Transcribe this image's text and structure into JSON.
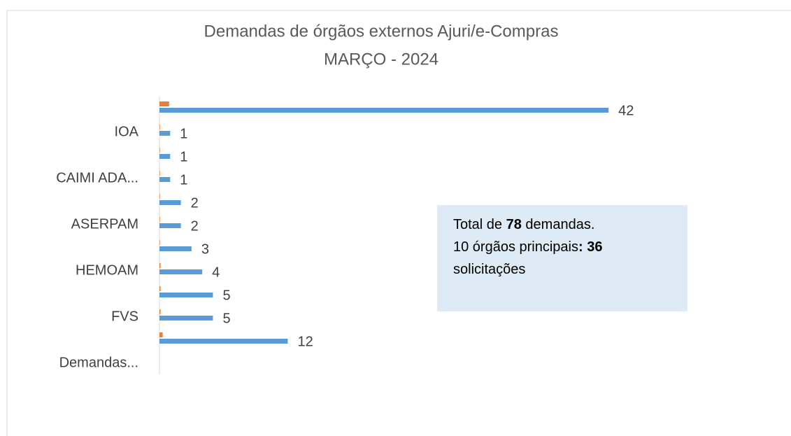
{
  "chart_data": {
    "type": "bar",
    "orientation": "horizontal",
    "title": "Demandas de órgãos externos Ajuri/e-Compras",
    "subtitle": "MARÇO - 2024",
    "categories": [
      null,
      "IOA",
      null,
      "CAIMI ADA...",
      null,
      "ASERPAM",
      null,
      "HEMOAM",
      null,
      "FVS",
      null,
      "Demandas..."
    ],
    "series": [
      {
        "color": "#ed7d31",
        "values": [
          0.9,
          0.05,
          0.05,
          0.05,
          0.05,
          0.05,
          0.05,
          0.1,
          0.1,
          0.1,
          0.3,
          null
        ]
      },
      {
        "color": "#5b9bd5",
        "values": [
          42,
          1,
          1,
          1,
          2,
          2,
          3,
          4,
          5,
          5,
          12,
          null
        ]
      }
    ],
    "xlim": [
      0,
      45
    ],
    "annotation": [
      [
        {
          "text": "Total de "
        },
        {
          "text": "78",
          "bold": true
        },
        {
          "text": " demandas."
        }
      ],
      [
        {
          "text": "10 órgãos principais"
        },
        {
          "text": ": 36",
          "bold": true
        }
      ],
      [
        {
          "text": "solicitações"
        }
      ]
    ]
  }
}
